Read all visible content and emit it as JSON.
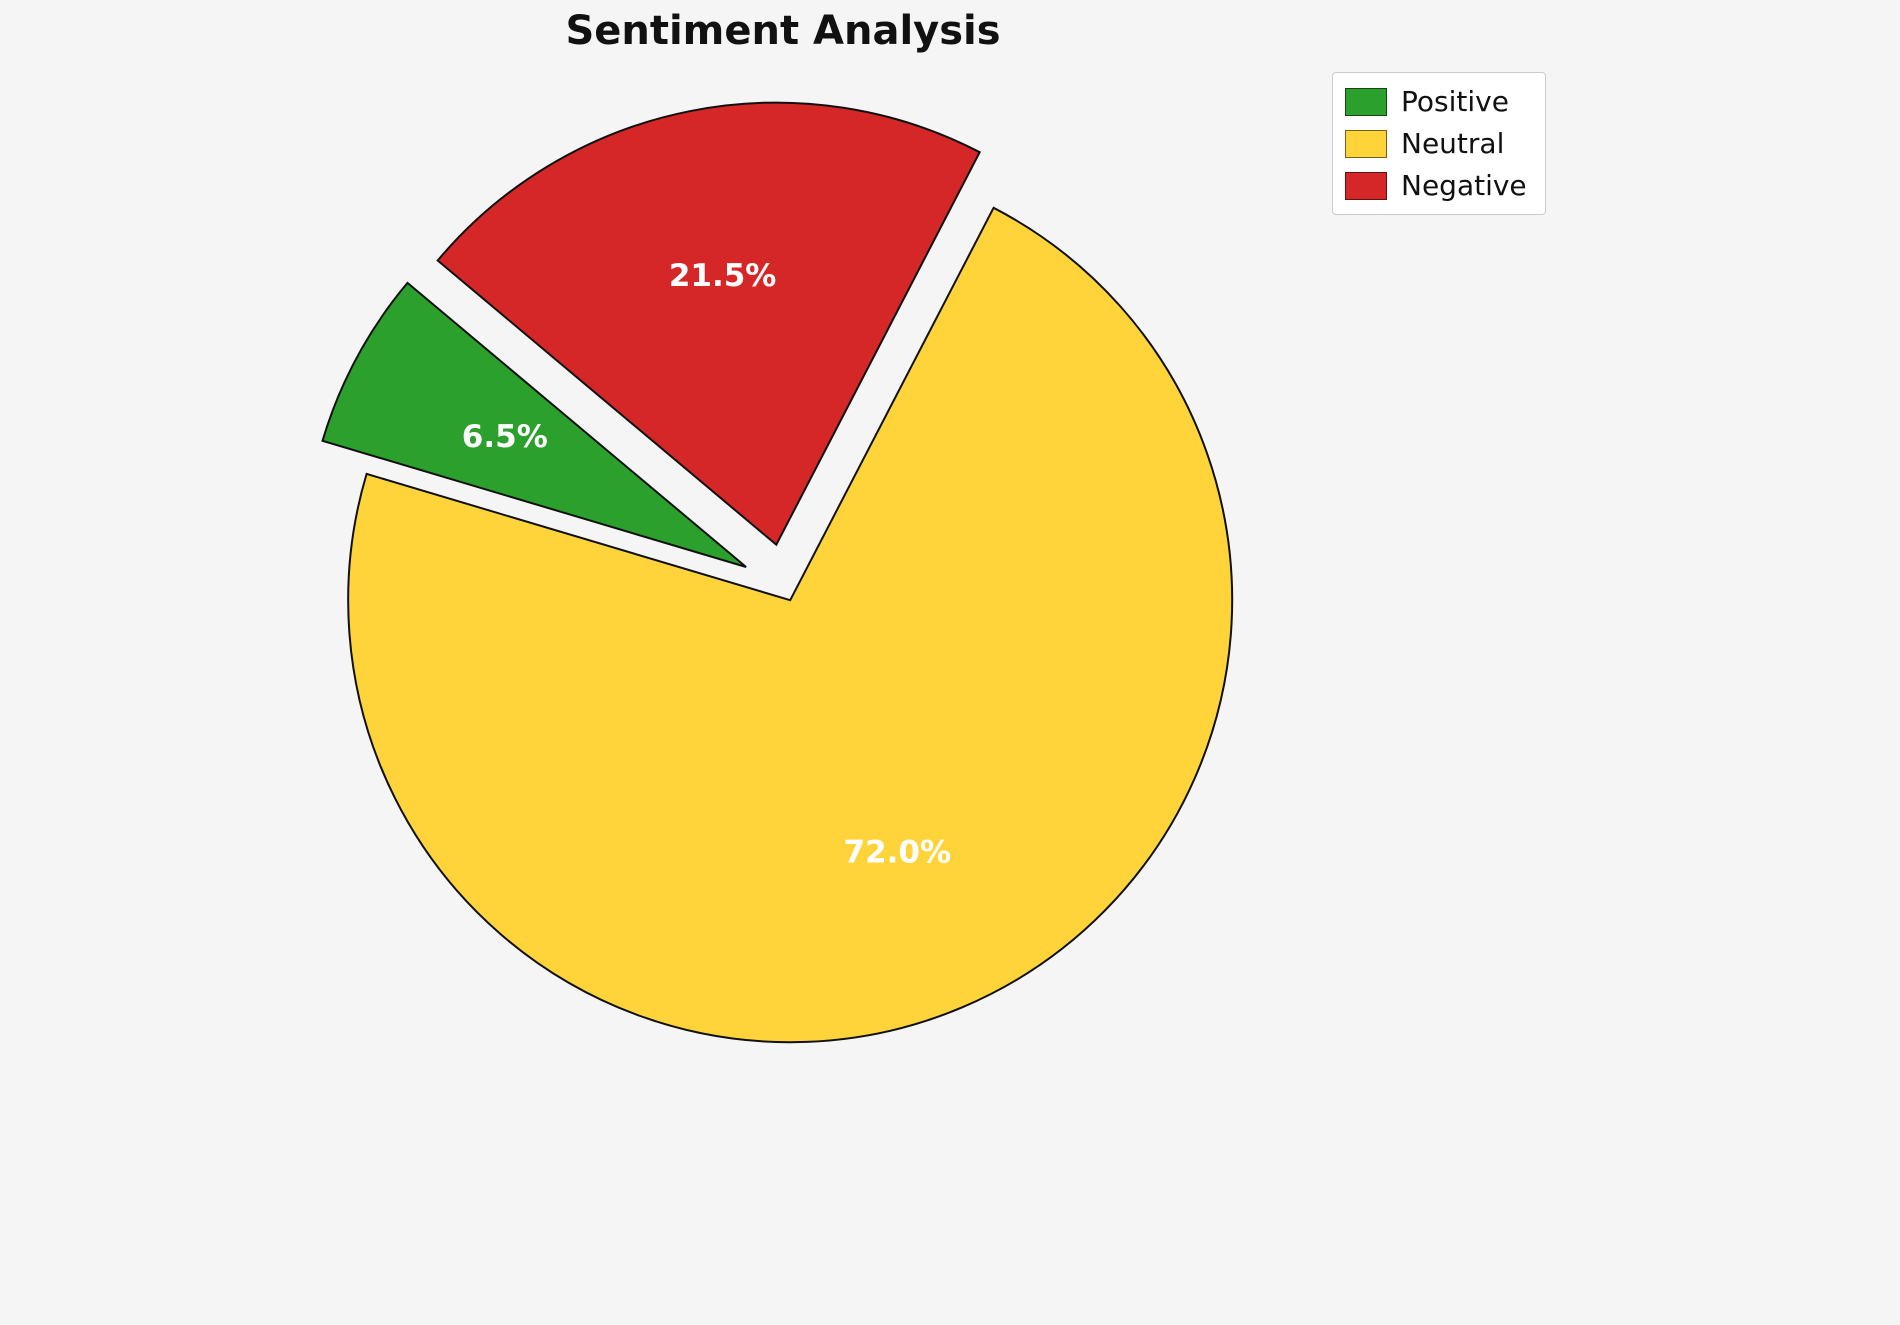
{
  "page": {
    "background_color": "#f5f5f5"
  },
  "chart_data": {
    "type": "pie",
    "title": "Sentiment Analysis",
    "labels": [
      "Positive",
      "Neutral",
      "Negative"
    ],
    "values": [
      6.5,
      72.0,
      21.5
    ],
    "value_labels": [
      "6.5%",
      "72.0%",
      "21.5%"
    ],
    "colors": [
      "#2ca02c",
      "#ffd43b",
      "#d62728"
    ],
    "explode": [
      0.1,
      0.03,
      0.1
    ],
    "start_angle": 140,
    "direction": "counterclockwise",
    "label_distance": 0.62,
    "edge_color": "#111111",
    "label_color": "#ffffff",
    "legend": {
      "position": "upper right",
      "entries": [
        "Positive",
        "Neutral",
        "Negative"
      ]
    }
  }
}
